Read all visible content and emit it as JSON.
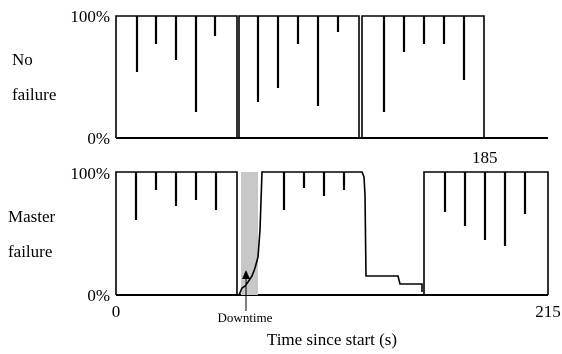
{
  "chart_data": {
    "type": "line",
    "xlabel": "Time since start (s)",
    "x_ticks": [
      "0",
      "215"
    ],
    "x_range": [
      0,
      215
    ],
    "y_ticks": [
      "0%",
      "100%"
    ],
    "y_range": [
      0,
      100
    ],
    "panels": [
      {
        "row_label_lines": [
          "No",
          "failure"
        ],
        "series": [
          {
            "points": [
              [
                0,
                0
              ],
              [
                0.2,
                2
              ],
              [
                0.8,
                100
              ],
              [
                25,
                100
              ],
              [
                4.5,
                100
              ],
              [
                4.5,
                65
              ],
              [
                4.5,
                100
              ],
              [
                21.5,
                100
              ],
              [
                21.5,
                55
              ],
              [
                21.5,
                100
              ],
              [
                25,
                100
              ],
              [
                25.1,
                0
              ],
              [
                27,
                0
              ],
              [
                25.1,
                100
              ],
              [
                51,
                100
              ],
              [
                40.5,
                100
              ],
              [
                40.5,
                75
              ],
              [
                40.5,
                100
              ],
              [
                42.5,
                100
              ],
              [
                42.5,
                82
              ],
              [
                42.5,
                100
              ],
              [
                51,
                100
              ],
              [
                51.3,
                0
              ],
              [
                56,
                0
              ],
              [
                51.3,
                100
              ],
              [
                72,
                100
              ],
              [
                72,
                100
              ],
              [
                72.2,
                0
              ],
              [
                77,
                0
              ],
              [
                72.2,
                100
              ],
              [
                97,
                100
              ],
              [
                97.3,
                0
              ],
              [
                100,
                0
              ]
            ]
          }
        ]
      },
      {
        "row_label_lines": [
          "Master",
          "failure"
        ],
        "series": [
          {
            "points": [
              [
                0,
                0
              ],
              [
                0.2,
                2
              ],
              [
                0.8,
                100
              ],
              [
                25,
                100
              ],
              [
                25.2,
                0
              ],
              [
                26,
                0
              ],
              [
                26,
                2
              ],
              [
                27,
                5
              ],
              [
                28,
                12
              ],
              [
                29,
                25
              ],
              [
                30.5,
                40
              ],
              [
                31,
                100
              ],
              [
                58,
                100
              ],
              [
                58.5,
                15
              ],
              [
                72,
                15
              ],
              [
                74,
                12
              ],
              [
                82,
                12
              ],
              [
                82.2,
                9
              ],
              [
                82.5,
                100
              ],
              [
                100,
                100
              ]
            ]
          }
        ],
        "annotations": [
          {
            "text": "Downtime"
          },
          {
            "text": "185"
          }
        ]
      }
    ]
  }
}
